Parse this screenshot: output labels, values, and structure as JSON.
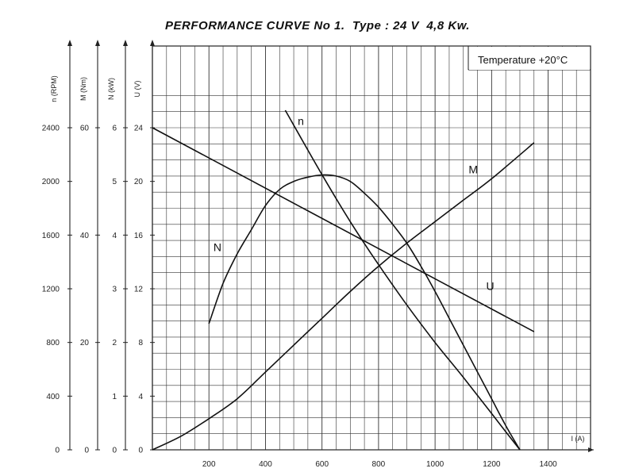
{
  "chart_data": {
    "type": "line",
    "title": "PERFORMANCE CURVE No 1.  Type : 24 V  4,8 Kw.",
    "annotation": "Temperature  +20°C",
    "xlabel": "I (A)",
    "xlim": [
      0,
      1550
    ],
    "x_ticks": [
      "200",
      "400",
      "600",
      "800",
      "1000",
      "1200",
      "1400"
    ],
    "grid": true,
    "y_axes": [
      {
        "key": "n",
        "label": "n (RPM)",
        "ylim": [
          0,
          2400
        ],
        "ticks": [
          "0",
          "400",
          "800",
          "1200",
          "1600",
          "2000",
          "2400"
        ]
      },
      {
        "key": "M",
        "label": "M (Nm)",
        "ylim": [
          0,
          60
        ],
        "ticks": [
          "0",
          "20",
          "40",
          "60"
        ]
      },
      {
        "key": "N",
        "label": "N (kW)",
        "ylim": [
          0,
          6
        ],
        "ticks": [
          "0",
          "1",
          "2",
          "3",
          "4",
          "5",
          "6"
        ]
      },
      {
        "key": "U",
        "label": "U (V)",
        "ylim": [
          0,
          24
        ],
        "ticks": [
          "0",
          "4",
          "8",
          "12",
          "16",
          "20",
          "24"
        ]
      }
    ],
    "series": [
      {
        "name": "n",
        "axis": "n",
        "x": [
          470,
          600,
          700,
          800,
          900,
          1000,
          1100,
          1200,
          1300
        ],
        "y": [
          2530,
          2050,
          1700,
          1380,
          1080,
          800,
          540,
          270,
          0
        ]
      },
      {
        "name": "N",
        "axis": "N",
        "x": [
          200,
          250,
          300,
          350,
          400,
          450,
          500,
          550,
          600,
          650,
          700,
          750,
          800,
          850,
          900,
          950,
          1000,
          1050,
          1100,
          1150,
          1200,
          1250,
          1300
        ],
        "y": [
          2.35,
          3.1,
          3.65,
          4.1,
          4.55,
          4.85,
          5.0,
          5.08,
          5.12,
          5.1,
          5.0,
          4.78,
          4.52,
          4.2,
          3.85,
          3.42,
          2.95,
          2.45,
          1.95,
          1.45,
          0.95,
          0.45,
          0
        ]
      },
      {
        "name": "M",
        "axis": "M",
        "x": [
          0,
          100,
          200,
          300,
          400,
          500,
          600,
          700,
          800,
          900,
          1000,
          1100,
          1200,
          1350
        ],
        "y": [
          0,
          2.5,
          5.8,
          9.5,
          14.5,
          19.5,
          24.5,
          29.5,
          34.2,
          38.5,
          42.5,
          46.5,
          50.5,
          57.2
        ]
      },
      {
        "name": "U",
        "axis": "U",
        "x": [
          0,
          1350
        ],
        "y": [
          24,
          8.8
        ]
      }
    ],
    "series_label_positions": [
      {
        "name": "n",
        "x": 525,
        "y_axis": "n",
        "y": 2420
      },
      {
        "name": "N",
        "x": 230,
        "y_axis": "N",
        "y": 3.7
      },
      {
        "name": "M",
        "x": 1135,
        "y_axis": "M",
        "y": 51.5
      },
      {
        "name": "U",
        "x": 1195,
        "y_axis": "U",
        "y": 11.9
      }
    ]
  }
}
